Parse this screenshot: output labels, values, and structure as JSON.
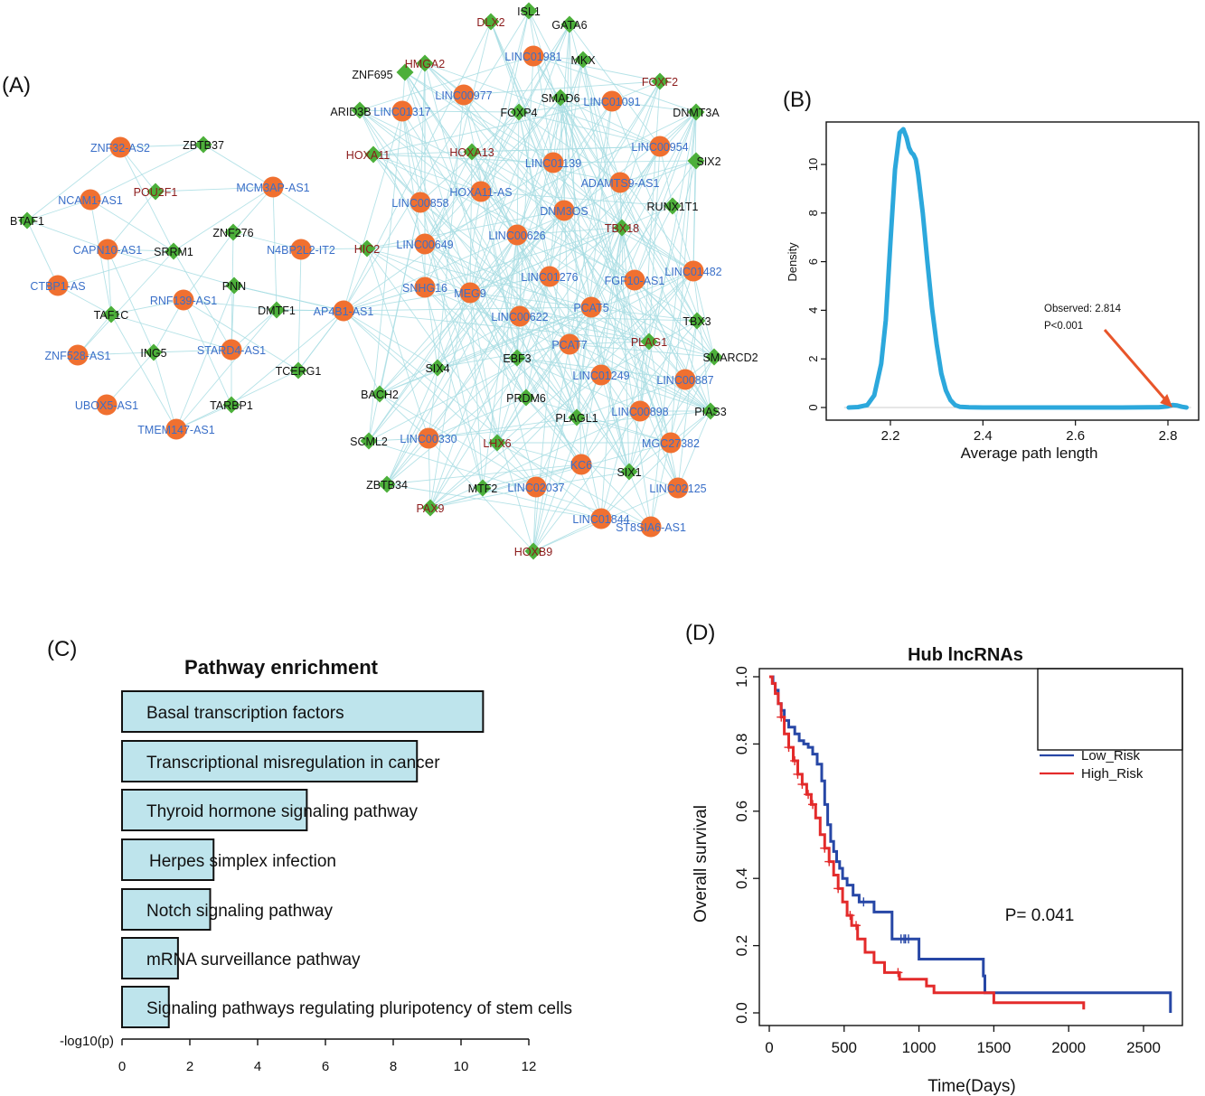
{
  "figure": {
    "panels": [
      {
        "id": "A",
        "label": "(A)"
      },
      {
        "id": "B",
        "label": "(B)"
      },
      {
        "id": "C",
        "label": "(C)"
      },
      {
        "id": "D",
        "label": "(D)"
      }
    ]
  },
  "colors": {
    "lncrna_node": "#F07030",
    "tf_node": "#4CAF3A",
    "edge": "#A8DDE3",
    "lncrna_label": "#3A6FC8",
    "tf_label_black": "#111111",
    "tf_label_red": "#8B1A1A",
    "density_curve": "#2CA8DC",
    "arrow": "#E8552A",
    "bar_fill": "#BEE4EC",
    "low_risk": "#2747A6",
    "high_risk": "#E32B2B"
  },
  "network": {
    "node_types": {
      "lncRNA": "circle",
      "TF": "diamond"
    },
    "nodes": [
      {
        "label": "ZNF32-AS2",
        "type": "lncRNA",
        "color": "blue"
      },
      {
        "label": "ZBTB37",
        "type": "TF",
        "color": "black"
      },
      {
        "label": "NCAM1-AS1",
        "type": "lncRNA",
        "color": "blue"
      },
      {
        "label": "POU2F1",
        "type": "TF",
        "color": "red"
      },
      {
        "label": "MCM3AP-AS1",
        "type": "lncRNA",
        "color": "blue"
      },
      {
        "label": "BTAF1",
        "type": "TF",
        "color": "black"
      },
      {
        "label": "ZNF276",
        "type": "TF",
        "color": "black"
      },
      {
        "label": "CAPN10-AS1",
        "type": "lncRNA",
        "color": "blue"
      },
      {
        "label": "SRRM1",
        "type": "TF",
        "color": "black"
      },
      {
        "label": "N4BP2L2-IT2",
        "type": "lncRNA",
        "color": "blue"
      },
      {
        "label": "CTBP1-AS",
        "type": "lncRNA",
        "color": "blue"
      },
      {
        "label": "PNN",
        "type": "TF",
        "color": "black"
      },
      {
        "label": "RNF139-AS1",
        "type": "lncRNA",
        "color": "blue"
      },
      {
        "label": "TAF1C",
        "type": "TF",
        "color": "black"
      },
      {
        "label": "DMTF1",
        "type": "TF",
        "color": "black"
      },
      {
        "label": "AP4B1-AS1",
        "type": "lncRNA",
        "color": "blue"
      },
      {
        "label": "ZNF528-AS1",
        "type": "lncRNA",
        "color": "blue"
      },
      {
        "label": "ING5",
        "type": "TF",
        "color": "black"
      },
      {
        "label": "STARD4-AS1",
        "type": "lncRNA",
        "color": "blue"
      },
      {
        "label": "TCERG1",
        "type": "TF",
        "color": "black"
      },
      {
        "label": "UBOX5-AS1",
        "type": "lncRNA",
        "color": "blue"
      },
      {
        "label": "TARBP1",
        "type": "TF",
        "color": "black"
      },
      {
        "label": "TMEM147-AS1",
        "type": "lncRNA",
        "color": "blue"
      },
      {
        "label": "DLX2",
        "type": "TF",
        "color": "red"
      },
      {
        "label": "ISL1",
        "type": "TF",
        "color": "black"
      },
      {
        "label": "GATA6",
        "type": "TF",
        "color": "black"
      },
      {
        "label": "LINC01981",
        "type": "lncRNA",
        "color": "blue"
      },
      {
        "label": "MKX",
        "type": "TF",
        "color": "black"
      },
      {
        "label": "ZNF695",
        "type": "TF",
        "color": "black"
      },
      {
        "label": "HMGA2",
        "type": "TF",
        "color": "red"
      },
      {
        "label": "FOXF2",
        "type": "TF",
        "color": "red"
      },
      {
        "label": "LINC00977",
        "type": "lncRNA",
        "color": "blue"
      },
      {
        "label": "SMAD6",
        "type": "TF",
        "color": "black"
      },
      {
        "label": "LINC01091",
        "type": "lncRNA",
        "color": "blue"
      },
      {
        "label": "ARID3B",
        "type": "TF",
        "color": "black"
      },
      {
        "label": "LINC01317",
        "type": "lncRNA",
        "color": "blue"
      },
      {
        "label": "FOXP4",
        "type": "TF",
        "color": "black"
      },
      {
        "label": "DNMT3A",
        "type": "TF",
        "color": "black"
      },
      {
        "label": "LINC00954",
        "type": "lncRNA",
        "color": "blue"
      },
      {
        "label": "HOXA11",
        "type": "TF",
        "color": "red"
      },
      {
        "label": "HOXA13",
        "type": "TF",
        "color": "red"
      },
      {
        "label": "LINC01139",
        "type": "lncRNA",
        "color": "blue"
      },
      {
        "label": "SIX2",
        "type": "TF",
        "color": "black"
      },
      {
        "label": "ADAMTS9-AS1",
        "type": "lncRNA",
        "color": "blue"
      },
      {
        "label": "HOXA11-AS",
        "type": "lncRNA",
        "color": "blue"
      },
      {
        "label": "LINC00858",
        "type": "lncRNA",
        "color": "blue"
      },
      {
        "label": "RUNX1T1",
        "type": "TF",
        "color": "black"
      },
      {
        "label": "DNM3OS",
        "type": "lncRNA",
        "color": "blue"
      },
      {
        "label": "HIC2",
        "type": "TF",
        "color": "red"
      },
      {
        "label": "TBX18",
        "type": "TF",
        "color": "red"
      },
      {
        "label": "LINC00649",
        "type": "lncRNA",
        "color": "blue"
      },
      {
        "label": "LINC00626",
        "type": "lncRNA",
        "color": "blue"
      },
      {
        "label": "LINC01482",
        "type": "lncRNA",
        "color": "blue"
      },
      {
        "label": "LINC01276",
        "type": "lncRNA",
        "color": "blue"
      },
      {
        "label": "FGF10-AS1",
        "type": "lncRNA",
        "color": "blue"
      },
      {
        "label": "SNHG16",
        "type": "lncRNA",
        "color": "blue"
      },
      {
        "label": "MEG9",
        "type": "lncRNA",
        "color": "blue"
      },
      {
        "label": "PCAT5",
        "type": "lncRNA",
        "color": "blue"
      },
      {
        "label": "LINC00622",
        "type": "lncRNA",
        "color": "blue"
      },
      {
        "label": "TBX3",
        "type": "TF",
        "color": "black"
      },
      {
        "label": "PCAT7",
        "type": "lncRNA",
        "color": "blue"
      },
      {
        "label": "PLAG1",
        "type": "TF",
        "color": "red"
      },
      {
        "label": "SMARCD2",
        "type": "TF",
        "color": "black"
      },
      {
        "label": "EBF3",
        "type": "TF",
        "color": "black"
      },
      {
        "label": "SIX4",
        "type": "TF",
        "color": "black"
      },
      {
        "label": "LINC01249",
        "type": "lncRNA",
        "color": "blue"
      },
      {
        "label": "LINC00887",
        "type": "lncRNA",
        "color": "blue"
      },
      {
        "label": "BACH2",
        "type": "TF",
        "color": "black"
      },
      {
        "label": "PRDM6",
        "type": "TF",
        "color": "black"
      },
      {
        "label": "LINC00898",
        "type": "lncRNA",
        "color": "blue"
      },
      {
        "label": "PIAS3",
        "type": "TF",
        "color": "black"
      },
      {
        "label": "PLAGL1",
        "type": "TF",
        "color": "black"
      },
      {
        "label": "SCML2",
        "type": "TF",
        "color": "black"
      },
      {
        "label": "LINC00330",
        "type": "lncRNA",
        "color": "blue"
      },
      {
        "label": "LHX6",
        "type": "TF",
        "color": "red"
      },
      {
        "label": "MGC27382",
        "type": "lncRNA",
        "color": "blue"
      },
      {
        "label": "KC6",
        "type": "lncRNA",
        "color": "blue"
      },
      {
        "label": "ZBTB34",
        "type": "TF",
        "color": "black"
      },
      {
        "label": "SIX1",
        "type": "TF",
        "color": "black"
      },
      {
        "label": "MTF2",
        "type": "TF",
        "color": "black"
      },
      {
        "label": "LINC02037",
        "type": "lncRNA",
        "color": "blue"
      },
      {
        "label": "LINC02125",
        "type": "lncRNA",
        "color": "blue"
      },
      {
        "label": "PAX9",
        "type": "TF",
        "color": "red"
      },
      {
        "label": "LINC01844",
        "type": "lncRNA",
        "color": "blue"
      },
      {
        "label": "ST8SIA6-AS1",
        "type": "lncRNA",
        "color": "blue"
      },
      {
        "label": "HOXB9",
        "type": "TF",
        "color": "red"
      }
    ]
  },
  "chart_data": [
    {
      "panel": "B",
      "type": "line",
      "title": "",
      "xlabel": "Average path length",
      "ylabel": "Density",
      "xlim": [
        2.1,
        2.85
      ],
      "ylim": [
        0,
        11.5
      ],
      "xticks": [
        "2.2",
        "2.4",
        "2.6",
        "2.8"
      ],
      "yticks": [
        "0",
        "2",
        "4",
        "6",
        "8",
        "10"
      ],
      "grid": false,
      "series": [
        {
          "x": [
            2.11,
            2.13,
            2.15,
            2.165,
            2.18,
            2.19,
            2.2,
            2.21,
            2.22,
            2.228,
            2.235,
            2.24,
            2.245,
            2.25,
            2.255,
            2.26,
            2.27,
            2.28,
            2.29,
            2.3,
            2.31,
            2.32,
            2.33,
            2.34,
            2.35,
            2.37,
            2.4,
            2.5,
            2.6,
            2.7,
            2.78,
            2.8,
            2.81,
            2.82,
            2.83,
            2.84
          ],
          "y": [
            0,
            0.02,
            0.1,
            0.5,
            1.8,
            3.6,
            6.8,
            9.8,
            11.3,
            11.45,
            11.1,
            10.7,
            10.5,
            10.4,
            10.2,
            9.6,
            8.0,
            6.0,
            4.1,
            2.6,
            1.4,
            0.7,
            0.3,
            0.1,
            0.03,
            0.01,
            0,
            0,
            0,
            0,
            0.01,
            0.05,
            0.1,
            0.08,
            0.03,
            0
          ]
        }
      ],
      "annotations": [
        "Observed: 2.814",
        "P<0.001"
      ],
      "observed": 2.814
    },
    {
      "panel": "C",
      "type": "bar",
      "title": "Pathway enrichment",
      "xlabel": "-log10(p)",
      "ylabel": "",
      "xlim": [
        0,
        12
      ],
      "xticks": [
        "0",
        "2",
        "4",
        "6",
        "8",
        "10",
        "12"
      ],
      "categories": [
        "Basal transcription factors",
        "Transcriptional misregulation in cancer",
        "Thyroid hormone signaling pathway",
        "Herpes simplex infection",
        "Notch signaling pathway",
        "mRNA surveillance pathway",
        "Signaling pathways regulating pluripotency of stem cells"
      ],
      "values": [
        10.65,
        8.7,
        5.45,
        2.7,
        2.6,
        1.65,
        1.38
      ]
    },
    {
      "panel": "D",
      "type": "line",
      "title": "Hub lncRNAs",
      "xlabel": "Time(Days)",
      "ylabel": "Overall survival",
      "xlim": [
        0,
        2700
      ],
      "ylim": [
        0,
        1.0
      ],
      "xticks": [
        "0",
        "500",
        "1000",
        "1500",
        "2000",
        "2500"
      ],
      "yticks": [
        "0.0",
        "0.2",
        "0.4",
        "0.6",
        "0.8",
        "1.0"
      ],
      "legend": "top-right",
      "annotations": [
        "P= 0.041"
      ],
      "series": [
        {
          "name": "Low_Risk",
          "x": [
            0,
            25,
            40,
            60,
            80,
            100,
            130,
            170,
            200,
            230,
            260,
            290,
            320,
            350,
            370,
            390,
            410,
            430,
            450,
            470,
            490,
            520,
            560,
            600,
            700,
            820,
            1000,
            1030,
            1430,
            1440,
            2680
          ],
          "y": [
            1.0,
            0.98,
            0.96,
            0.92,
            0.9,
            0.87,
            0.85,
            0.83,
            0.81,
            0.8,
            0.79,
            0.77,
            0.74,
            0.69,
            0.62,
            0.56,
            0.51,
            0.48,
            0.45,
            0.43,
            0.4,
            0.38,
            0.35,
            0.33,
            0.3,
            0.22,
            0.16,
            0.16,
            0.11,
            0.06,
            0.0
          ],
          "censor_x": [
            630,
            880,
            900,
            910,
            930
          ]
        },
        {
          "name": "High_Risk",
          "x": [
            0,
            20,
            40,
            60,
            80,
            100,
            130,
            160,
            190,
            220,
            250,
            280,
            310,
            340,
            370,
            400,
            430,
            460,
            490,
            520,
            550,
            590,
            640,
            700,
            770,
            870,
            1050,
            1100,
            1500,
            2100
          ],
          "y": [
            1.0,
            0.98,
            0.95,
            0.92,
            0.88,
            0.83,
            0.79,
            0.75,
            0.71,
            0.68,
            0.65,
            0.62,
            0.58,
            0.53,
            0.49,
            0.45,
            0.41,
            0.37,
            0.33,
            0.29,
            0.26,
            0.22,
            0.18,
            0.15,
            0.12,
            0.1,
            0.08,
            0.06,
            0.03,
            0.01
          ],
          "censor_x": [
            80,
            130,
            170,
            190,
            220,
            260,
            290,
            370,
            400,
            460,
            540,
            580,
            860
          ]
        }
      ]
    }
  ]
}
